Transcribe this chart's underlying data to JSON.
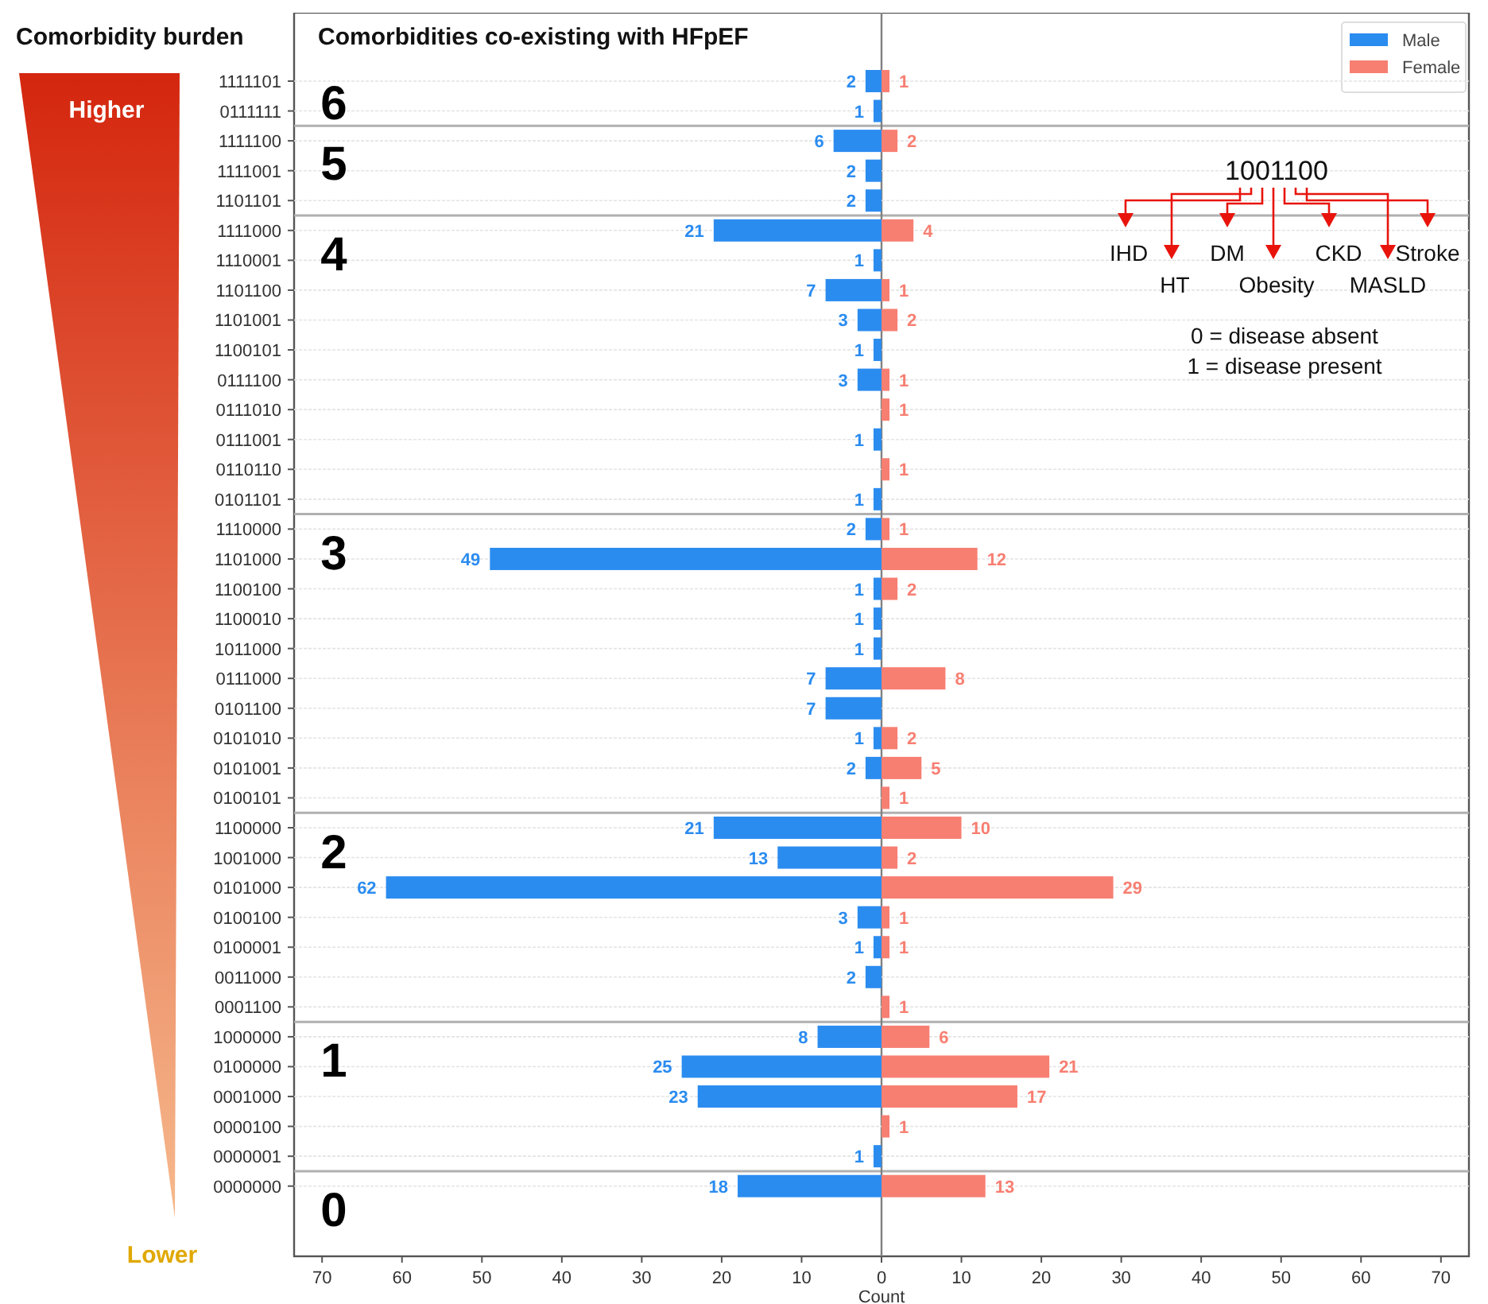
{
  "chart_data": [
    {
      "type": "bar",
      "orientation": "horizontal",
      "title": "Comorbidities co-existing with HFpEF",
      "categories": [
        "1111101",
        "0111111",
        "1111100",
        "1111001",
        "1101101",
        "1111000",
        "1110001",
        "1101100",
        "1101001",
        "1100101",
        "0111100",
        "0111010",
        "0111001",
        "0110110",
        "0101101",
        "1110000",
        "1101000",
        "1100100",
        "1100010",
        "1011000",
        "0111000",
        "0101100",
        "0101010",
        "0101001",
        "0100101",
        "1100000",
        "1001000",
        "0101000",
        "0100100",
        "0100001",
        "0011000",
        "0001100",
        "1000000",
        "0100000",
        "0001000",
        "0000100",
        "0000001",
        "0000000"
      ],
      "series": [
        {
          "name": "Male",
          "color": "#2b8cf0",
          "values": [
            2,
            1,
            6,
            2,
            2,
            21,
            1,
            7,
            3,
            1,
            3,
            null,
            1,
            null,
            1,
            2,
            49,
            1,
            1,
            1,
            7,
            7,
            1,
            2,
            null,
            21,
            13,
            62,
            3,
            1,
            2,
            null,
            8,
            25,
            23,
            null,
            1,
            18
          ]
        }
      ],
      "data_labels": true,
      "xlim": [
        73.5,
        0
      ],
      "xticks": [
        70,
        60,
        50,
        40,
        30,
        20,
        10
      ],
      "grid": "y",
      "legend": "top right",
      "annotations": [
        "Comorbidity burden",
        "Higher",
        "Lower",
        "6",
        "5",
        "4",
        "3",
        "2",
        "1",
        "0"
      ]
    },
    {
      "type": "bar",
      "orientation": "horizontal",
      "xlabel": "Count",
      "categories": [
        "1111101",
        "0111111",
        "1111100",
        "1111001",
        "1101101",
        "1111000",
        "1110001",
        "1101100",
        "1101001",
        "1100101",
        "0111100",
        "0111010",
        "0111001",
        "0110110",
        "0101101",
        "1110000",
        "1101000",
        "1100100",
        "1100010",
        "1011000",
        "0111000",
        "0101100",
        "0101010",
        "0101001",
        "0100101",
        "1100000",
        "1001000",
        "0101000",
        "0100100",
        "0100001",
        "0011000",
        "0001100",
        "1000000",
        "0100000",
        "0001000",
        "0000100",
        "0000001",
        "0000000"
      ],
      "series": [
        {
          "name": "Female",
          "color": "#f77f72",
          "values": [
            1,
            null,
            2,
            null,
            null,
            4,
            null,
            1,
            2,
            null,
            1,
            1,
            null,
            1,
            null,
            1,
            12,
            2,
            null,
            null,
            8,
            null,
            2,
            5,
            1,
            10,
            2,
            29,
            1,
            1,
            null,
            1,
            6,
            21,
            17,
            1,
            null,
            13
          ]
        }
      ],
      "data_labels": true,
      "xlim": [
        0,
        73.5
      ],
      "xticks": [
        0,
        10,
        20,
        30,
        40,
        50,
        60,
        70
      ],
      "grid": "y",
      "legend": "top right",
      "tick_labels": "x",
      "annotations": [
        "1001100",
        "IHD",
        "HT",
        "DM",
        "Obesity",
        "CKD",
        "MASLD",
        "Stroke",
        "0 = disease absent",
        "1 = disease present"
      ]
    }
  ]
}
